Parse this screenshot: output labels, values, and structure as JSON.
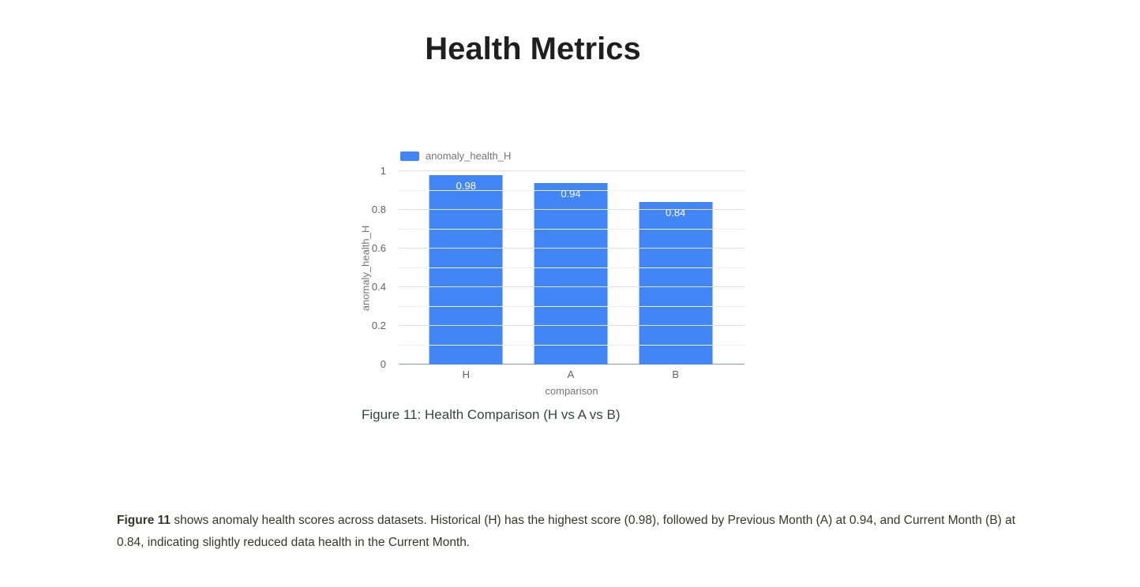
{
  "page": {
    "title": "Health Metrics"
  },
  "figure": {
    "caption": "Figure 11: Health Comparison (H vs A vs B)"
  },
  "chart_data": {
    "type": "bar",
    "legend": "anomaly_health_H",
    "categories": [
      "H",
      "A",
      "B"
    ],
    "values": [
      0.98,
      0.94,
      0.84
    ],
    "bar_labels": [
      "0.98",
      "0.94",
      "0.84"
    ],
    "xlabel": "comparison",
    "ylabel": "anomaly_health_H",
    "ylim": [
      0,
      1
    ],
    "ytick_step": 0.2,
    "yminor_step": 0.1,
    "yticks": [
      {
        "value": 1,
        "label": "1"
      },
      {
        "value": 0.8,
        "label": "0.8"
      },
      {
        "value": 0.6,
        "label": "0.6"
      },
      {
        "value": 0.4,
        "label": "0.4"
      },
      {
        "value": 0.2,
        "label": "0.2"
      },
      {
        "value": 0,
        "label": "0"
      }
    ],
    "legend_position": "top",
    "grid": true,
    "bar_color": "#4285f4"
  },
  "paragraph": {
    "lead": "Figure 11",
    "text": " shows anomaly health scores across datasets. Historical (H) has the highest score (0.98), followed by Previous Month (A) at 0.94, and Current Month (B) at 0.84, indicating slightly reduced data health in the Current Month."
  },
  "colors": {
    "accent": "#4285f4",
    "axis_text": "#616161",
    "muted_text": "#757575",
    "gridline": "#e0e0e0",
    "title_text": "#1f1f1f",
    "body_text": "#37352f"
  }
}
